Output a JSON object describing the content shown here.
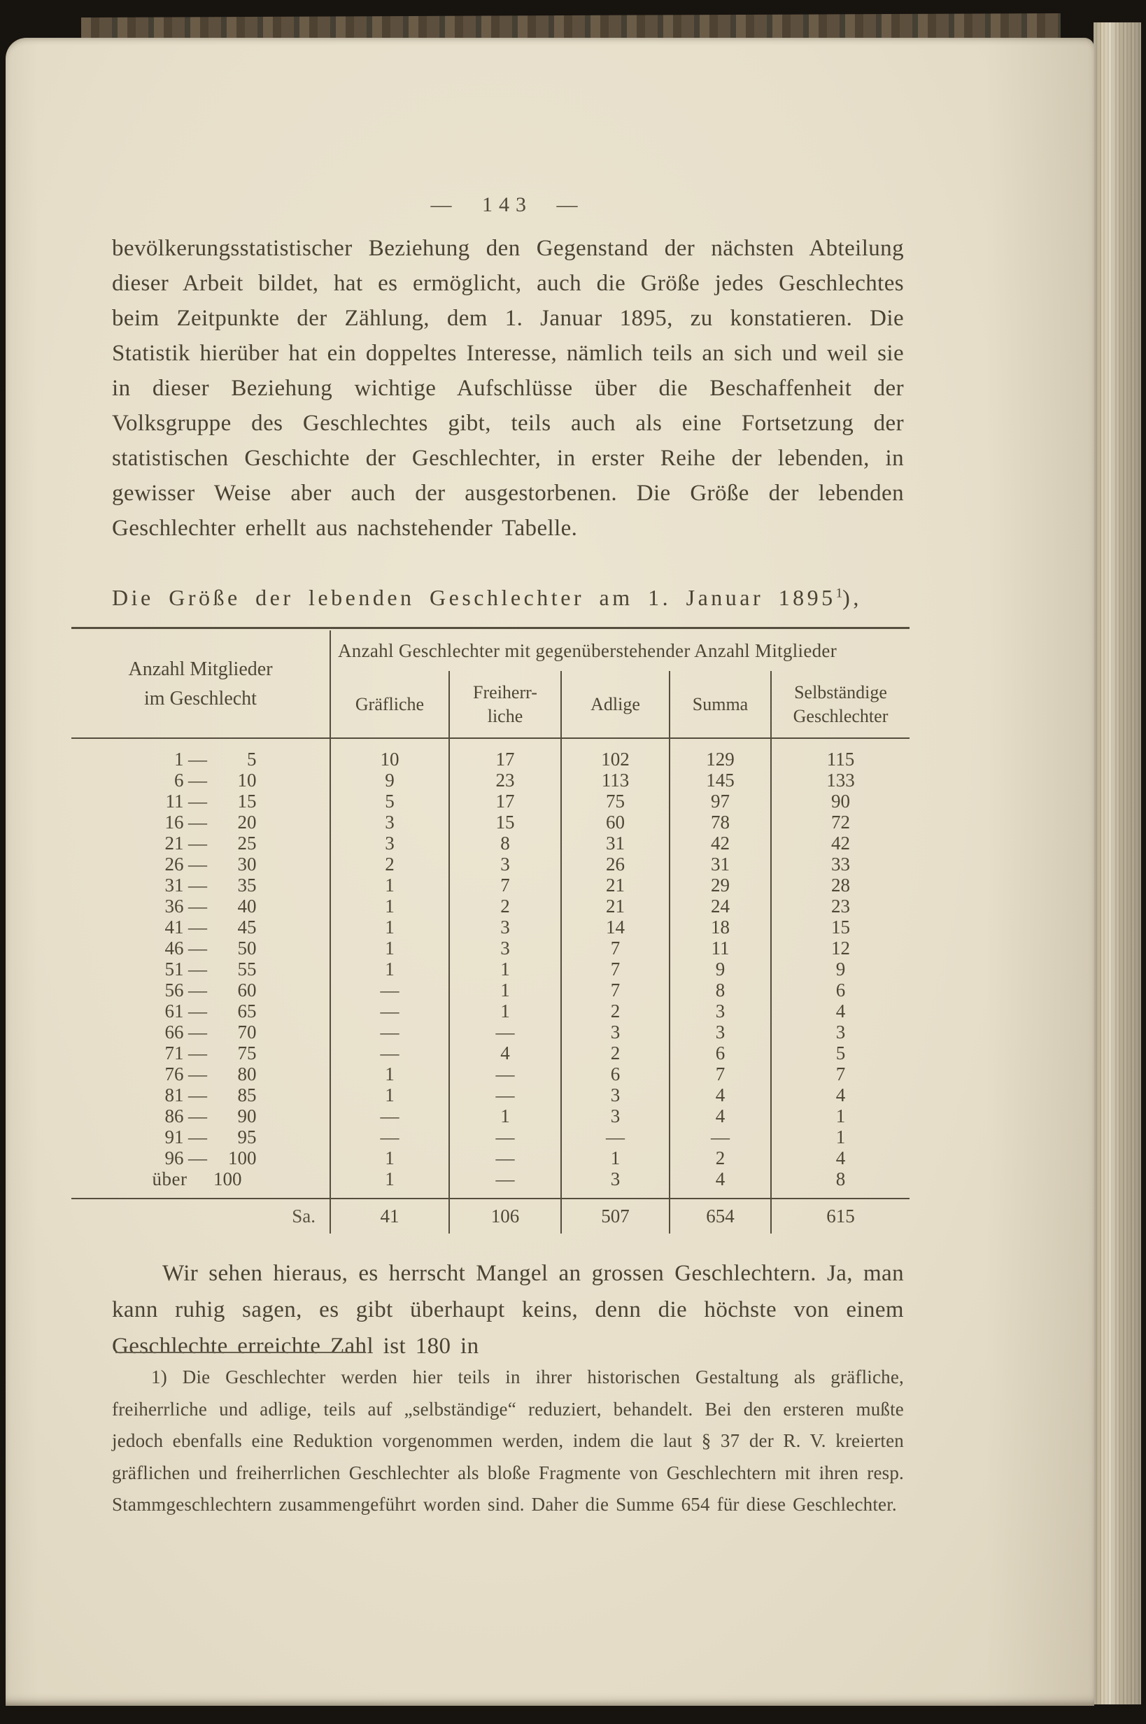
{
  "page": {
    "number_display": "— 143 —",
    "paragraph1": "bevölkerungsstatistischer Beziehung den Gegenstand der nächsten Abteilung dieser Arbeit bildet, hat es ermöglicht, auch die Größe jedes Geschlechtes beim Zeitpunkte der Zählung, dem 1. Januar 1895, zu konstatieren. Die Statistik hierüber hat ein doppeltes Interesse, nämlich teils an sich und weil sie in dieser Beziehung wichtige Aufschlüsse über die Beschaffenheit der Volksgruppe des Geschlechtes gibt, teils auch als eine Fortsetzung der statistischen Geschichte der Geschlechter, in erster Reihe der lebenden, in gewisser Weise aber auch der ausgestorbenen. Die Größe der lebenden Geschlechter erhellt aus nachstehender Tabelle.",
    "caption": {
      "text": "Die Größe der lebenden Geschlechter am 1. Januar 1895",
      "footnote_ref": "1",
      "suffix": "),"
    },
    "paragraph2": "Wir sehen hieraus, es herrscht Mangel an grossen Geschlechtern. Ja, man kann ruhig sagen, es gibt überhaupt keins, denn die höchste von einem Geschlechte erreichte Zahl ist 180 in",
    "footnote": {
      "marker": "1)",
      "text": "Die Geschlechter werden hier teils in ihrer historischen Gestaltung als gräfliche, freiherrliche und adlige, teils auf „selbständige“ reduziert, behandelt. Bei den ersteren mußte jedoch ebenfalls eine Reduktion vorgenommen werden, indem die laut § 37 der R. V. kreierten gräflichen und freiherrlichen Geschlechter als bloße Fragmente von Geschlechtern mit ihren resp. Stammgeschlechtern zusammengeführt worden sind. Daher die Summe 654 für diese Geschlechter."
    }
  },
  "table": {
    "col1_header": "Anzahl Mitglieder\nim Geschlecht",
    "group_header": "Anzahl Geschlechter mit gegenüberstehender Anzahl Mitglieder",
    "columns": [
      "Gräfliche",
      "Freiherr-\nliche",
      "Adlige",
      "Summa",
      "Selbständige\nGeschlechter"
    ],
    "rows": [
      {
        "from": "1",
        "to": "5",
        "values": [
          "10",
          "17",
          "102",
          "129",
          "115"
        ]
      },
      {
        "from": "6",
        "to": "10",
        "values": [
          "9",
          "23",
          "113",
          "145",
          "133"
        ]
      },
      {
        "from": "11",
        "to": "15",
        "values": [
          "5",
          "17",
          "75",
          "97",
          "90"
        ]
      },
      {
        "from": "16",
        "to": "20",
        "values": [
          "3",
          "15",
          "60",
          "78",
          "72"
        ]
      },
      {
        "from": "21",
        "to": "25",
        "values": [
          "3",
          "8",
          "31",
          "42",
          "42"
        ]
      },
      {
        "from": "26",
        "to": "30",
        "values": [
          "2",
          "3",
          "26",
          "31",
          "33"
        ]
      },
      {
        "from": "31",
        "to": "35",
        "values": [
          "1",
          "7",
          "21",
          "29",
          "28"
        ]
      },
      {
        "from": "36",
        "to": "40",
        "values": [
          "1",
          "2",
          "21",
          "24",
          "23"
        ]
      },
      {
        "from": "41",
        "to": "45",
        "values": [
          "1",
          "3",
          "14",
          "18",
          "15"
        ]
      },
      {
        "from": "46",
        "to": "50",
        "values": [
          "1",
          "3",
          "7",
          "11",
          "12"
        ]
      },
      {
        "from": "51",
        "to": "55",
        "values": [
          "1",
          "1",
          "7",
          "9",
          "9"
        ]
      },
      {
        "from": "56",
        "to": "60",
        "values": [
          "—",
          "1",
          "7",
          "8",
          "6"
        ]
      },
      {
        "from": "61",
        "to": "65",
        "values": [
          "—",
          "1",
          "2",
          "3",
          "4"
        ]
      },
      {
        "from": "66",
        "to": "70",
        "values": [
          "—",
          "—",
          "3",
          "3",
          "3"
        ]
      },
      {
        "from": "71",
        "to": "75",
        "values": [
          "—",
          "4",
          "2",
          "6",
          "5"
        ]
      },
      {
        "from": "76",
        "to": "80",
        "values": [
          "1",
          "—",
          "6",
          "7",
          "7"
        ]
      },
      {
        "from": "81",
        "to": "85",
        "values": [
          "1",
          "—",
          "3",
          "4",
          "4"
        ]
      },
      {
        "from": "86",
        "to": "90",
        "values": [
          "—",
          "1",
          "3",
          "4",
          "1"
        ]
      },
      {
        "from": "91",
        "to": "95",
        "values": [
          "—",
          "—",
          "—",
          "—",
          "1"
        ]
      },
      {
        "from": "96",
        "to": "100",
        "values": [
          "1",
          "—",
          "1",
          "2",
          "4"
        ]
      },
      {
        "from": "über",
        "to": "100",
        "dash": false,
        "values": [
          "1",
          "—",
          "3",
          "4",
          "8"
        ]
      }
    ],
    "footer": {
      "label": "Sa.",
      "values": [
        "41",
        "106",
        "507",
        "654",
        "615"
      ]
    }
  }
}
